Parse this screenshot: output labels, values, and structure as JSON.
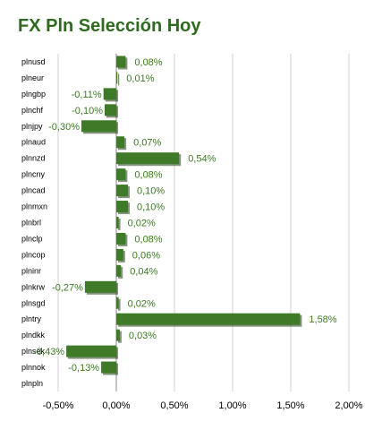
{
  "chart_data": {
    "type": "bar",
    "orientation": "horizontal",
    "title": "FX Pln Selección Hoy",
    "xlabel": "",
    "ylabel": "",
    "xlim": [
      -0.5,
      2.0
    ],
    "grid": true,
    "bar_color": "#3e7a27",
    "title_color": "#2e6b1e",
    "label_color": "#3a7a22",
    "x_ticks": [
      {
        "value": -0.5,
        "label": "-0,50%"
      },
      {
        "value": 0.0,
        "label": "0,00%"
      },
      {
        "value": 0.5,
        "label": "0,50%"
      },
      {
        "value": 1.0,
        "label": "1,00%"
      },
      {
        "value": 1.5,
        "label": "1,50%"
      },
      {
        "value": 2.0,
        "label": "2,00%"
      }
    ],
    "categories": [
      "plnusd",
      "plneur",
      "plngbp",
      "plnchf",
      "plnjpy",
      "plnaud",
      "plnnzd",
      "plncny",
      "plncad",
      "plnmxn",
      "plnbrl",
      "plnclp",
      "plncop",
      "plninr",
      "plnkrw",
      "plnsgd",
      "plntry",
      "plndkk",
      "plnsek",
      "plnnok",
      "plnpln"
    ],
    "values": [
      0.08,
      0.01,
      -0.11,
      -0.1,
      -0.3,
      0.07,
      0.54,
      0.08,
      0.1,
      0.1,
      0.02,
      0.08,
      0.06,
      0.04,
      -0.27,
      0.02,
      1.58,
      0.03,
      -0.43,
      -0.13,
      0.0
    ],
    "value_labels": [
      "0,08%",
      "0,01%",
      "-0,11%",
      "-0,10%",
      "-0,30%",
      "0,07%",
      "0,54%",
      "0,08%",
      "0,10%",
      "0,10%",
      "0,02%",
      "0,08%",
      "0,06%",
      "0,04%",
      "-0,27%",
      "0,02%",
      "1,58%",
      "0,03%",
      "-0,43%",
      "-0,13%",
      ""
    ]
  }
}
